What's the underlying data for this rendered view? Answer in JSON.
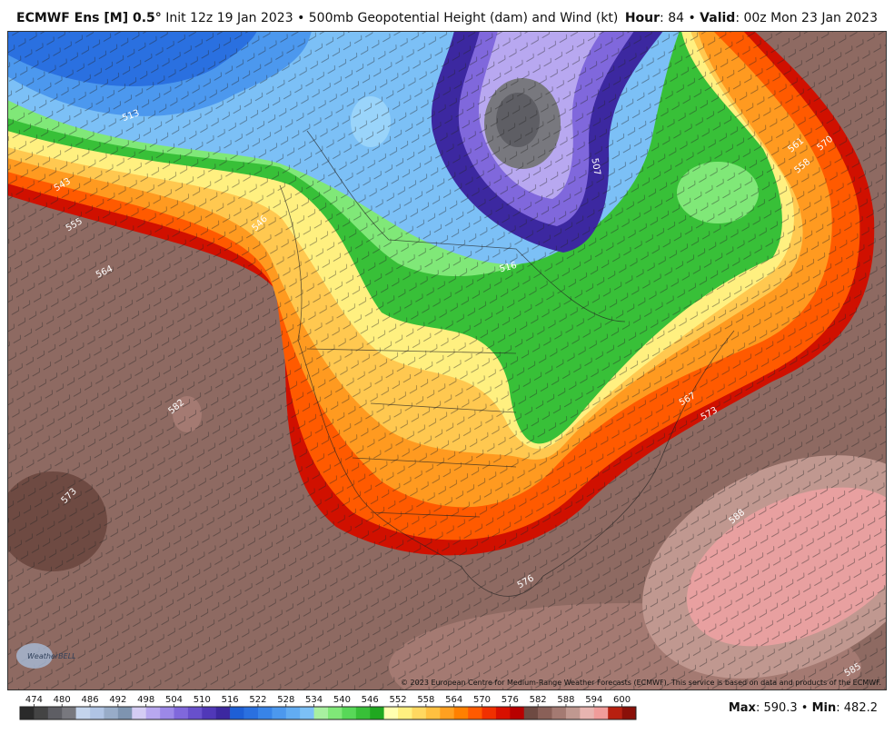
{
  "header": {
    "model": "ECMWF Ens [M] 0.5°",
    "description": "Init 12z 19 Jan 2023 • 500mb Geopotential Height (dam) and Wind (kt)",
    "right": [
      "Hour",
      ": 84 • ",
      "Valid",
      ": 00z Mon 23 Jan 2023"
    ]
  },
  "map": {
    "contour_labels": [
      513,
      516,
      507,
      564,
      555,
      543,
      567,
      573,
      576,
      588,
      582,
      570,
      558,
      561,
      573,
      546,
      585
    ],
    "copyright": "© 2023 European Centre for Medium-Range Weather Forecasts (ECMWF). This service is based on data and products of the ECMWF.",
    "logo": "WeatherBELL"
  },
  "colorbar": {
    "ticks": [
      474,
      480,
      486,
      492,
      498,
      504,
      510,
      516,
      522,
      528,
      534,
      540,
      546,
      552,
      558,
      564,
      570,
      576,
      582,
      588,
      594,
      600
    ],
    "colors": [
      "#2a2a2a",
      "#444444",
      "#5e5e64",
      "#78787e",
      "#c4d4ec",
      "#b0c4e4",
      "#98acc8",
      "#7e94b0",
      "#d4ccf4",
      "#b8a8f0",
      "#9c88e8",
      "#8068dc",
      "#6850cc",
      "#5038b8",
      "#3c28a0",
      "#1e5fd6",
      "#2a70e0",
      "#3884e8",
      "#4c98ee",
      "#62acf2",
      "#7cc0f6",
      "#a8f0a0",
      "#80e878",
      "#58d858",
      "#38c038",
      "#20a820",
      "#ffffb0",
      "#fff080",
      "#ffd860",
      "#ffc040",
      "#ffa020",
      "#ff8000",
      "#ff5a00",
      "#f03000",
      "#d81000",
      "#b80000",
      "#6e4a42",
      "#8a6058",
      "#a47a72",
      "#c09890",
      "#e8b4b0",
      "#f09c9a",
      "#b82010",
      "#8a1008"
    ]
  },
  "footer": {
    "stats": [
      "Max",
      ": 590.3 • ",
      "Min",
      ": 482.2"
    ]
  }
}
